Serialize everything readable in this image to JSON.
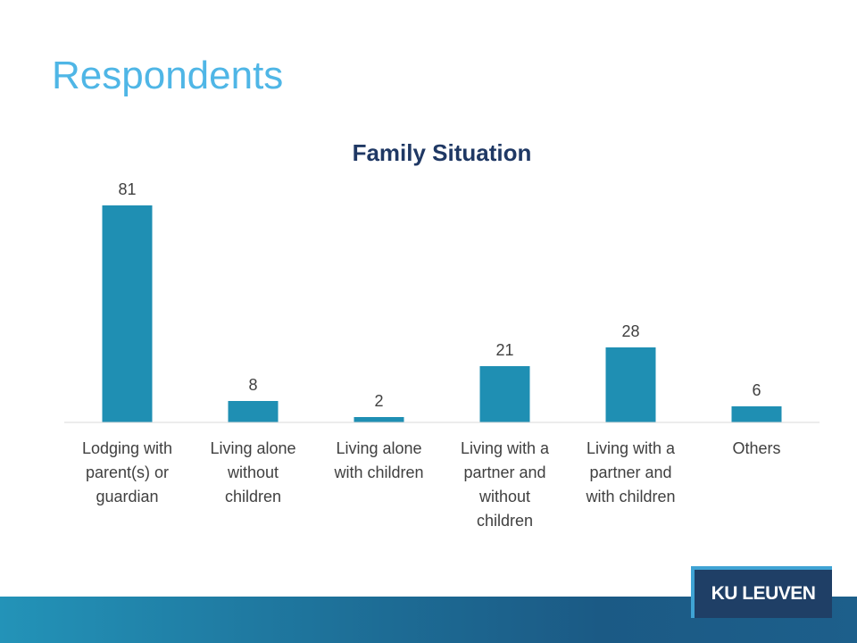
{
  "slide": {
    "title": "Respondents"
  },
  "logo": {
    "text": "KU LEUVEN"
  },
  "colors": {
    "title": "#4fb6e6",
    "bar": "#1f8fb3",
    "chart_title": "#1f3864",
    "footer": "#1d6c95",
    "logo_bg": "#1f3f66"
  },
  "chart_data": {
    "type": "bar",
    "title": "Family Situation",
    "categories": [
      [
        "Lodging with",
        "parent(s) or",
        "guardian"
      ],
      [
        "Living alone",
        "without",
        "children"
      ],
      [
        "Living alone",
        "with children"
      ],
      [
        "Living with a",
        "partner and",
        "without",
        "children"
      ],
      [
        "Living with a",
        "partner and",
        "with children"
      ],
      [
        "Others"
      ]
    ],
    "values": [
      81,
      8,
      2,
      21,
      28,
      6
    ],
    "data_labels": [
      "81",
      "8",
      "2",
      "21",
      "28",
      "6"
    ],
    "ylim": [
      0,
      85
    ],
    "xlabel": "",
    "ylabel": "",
    "grid": false,
    "legend": "none"
  }
}
